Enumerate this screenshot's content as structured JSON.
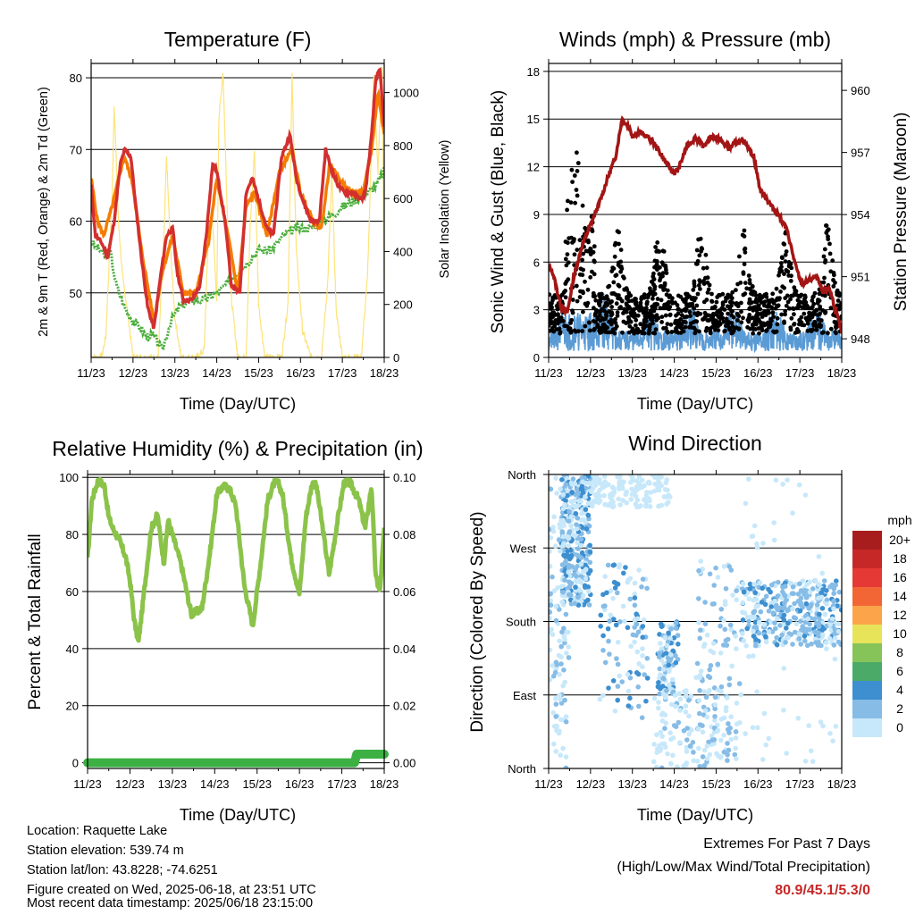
{
  "days": [
    "11/23",
    "12/23",
    "13/23",
    "14/23",
    "15/23",
    "16/23",
    "17/23",
    "18/23"
  ],
  "chart_data": [
    {
      "type": "line",
      "title": "Temperature (F)",
      "xlabel": "Time (Day/UTC)",
      "ylabel": "2m & 9m T (Red, Orange) & 2m Td (Green)",
      "y2label": "Solar Insolation (Yellow)",
      "ylim": [
        41,
        82
      ],
      "yticks": [
        50,
        60,
        70,
        80
      ],
      "y2lim": [
        0,
        1110
      ],
      "y2ticks": [
        0,
        200,
        400,
        600,
        800,
        1000
      ],
      "xlim": [
        0,
        7
      ],
      "series": [
        {
          "name": "2m T",
          "color": "#d32f2f",
          "axis": "left",
          "x": [
            0,
            0.1,
            0.25,
            0.4,
            0.55,
            0.7,
            0.8,
            0.95,
            1.05,
            1.2,
            1.35,
            1.5,
            1.65,
            1.8,
            1.95,
            2.05,
            2.2,
            2.4,
            2.6,
            2.75,
            2.9,
            3.0,
            3.2,
            3.35,
            3.55,
            3.7,
            3.85,
            4.0,
            4.2,
            4.35,
            4.55,
            4.75,
            4.9,
            5.05,
            5.25,
            5.45,
            5.6,
            5.75,
            5.9,
            6.05,
            6.25,
            6.45,
            6.55,
            6.7,
            6.8,
            6.9,
            7.0
          ],
          "y": [
            65,
            58,
            57,
            55,
            60,
            68,
            70,
            69,
            63,
            55,
            48,
            45,
            52,
            58,
            59,
            53,
            49,
            49,
            51,
            58,
            68,
            67,
            60,
            51,
            50,
            64,
            66,
            63,
            59,
            58,
            69,
            72,
            66,
            63,
            60,
            60,
            70,
            67,
            65,
            64,
            64,
            63,
            64,
            72,
            80,
            81,
            73
          ]
        },
        {
          "name": "9m T",
          "color": "#f57c00",
          "axis": "left",
          "x": [
            0,
            0.15,
            0.3,
            0.5,
            0.7,
            0.8,
            1.0,
            1.2,
            1.5,
            1.7,
            1.95,
            2.2,
            2.5,
            2.8,
            3.0,
            3.3,
            3.5,
            3.7,
            3.9,
            4.2,
            4.5,
            4.8,
            5.0,
            5.3,
            5.5,
            5.7,
            5.9,
            6.2,
            6.5,
            6.7,
            6.85,
            7.0
          ],
          "y": [
            66,
            60,
            58,
            62,
            67,
            69,
            65,
            56,
            46,
            53,
            58,
            50,
            50,
            57,
            66,
            57,
            50,
            62,
            64,
            58,
            67,
            70,
            64,
            60,
            59,
            68,
            66,
            64,
            64,
            70,
            78,
            72
          ]
        },
        {
          "name": "2m Td",
          "color": "#4caf3e",
          "axis": "left",
          "x": [
            0,
            0.2,
            0.35,
            0.45,
            0.6,
            0.8,
            1.0,
            1.2,
            1.3,
            1.5,
            1.7,
            1.9,
            2.1,
            2.4,
            2.7,
            3.0,
            3.2,
            3.5,
            3.7,
            4.0,
            4.3,
            4.6,
            4.9,
            5.2,
            5.5,
            5.8,
            6.0,
            6.3,
            6.6,
            6.8,
            7.0
          ],
          "y": [
            57,
            56,
            55,
            56,
            51,
            48,
            46,
            45,
            44,
            44,
            42,
            46,
            48,
            49,
            49,
            50,
            51,
            53,
            54,
            56,
            56,
            58,
            59,
            59,
            60,
            61,
            62,
            63,
            64,
            65,
            67
          ]
        },
        {
          "name": "Solar Insolation",
          "color": "#fde37a",
          "axis": "right",
          "x": [
            0,
            0.25,
            0.35,
            0.5,
            0.55,
            0.65,
            0.75,
            0.85,
            1.0,
            1.15,
            1.3,
            1.45,
            1.6,
            1.75,
            1.8,
            1.9,
            2.0,
            2.15,
            2.35,
            2.55,
            2.7,
            2.8,
            2.9,
            3.0,
            3.05,
            3.15,
            3.3,
            3.5,
            3.7,
            3.8,
            3.9,
            4.0,
            4.15,
            4.35,
            4.55,
            4.7,
            4.8,
            4.9,
            5.05,
            5.25,
            5.5,
            5.65,
            5.75,
            5.85,
            6.0,
            6.2,
            6.45,
            6.6,
            6.75,
            6.85,
            6.95,
            7.0
          ],
          "y": [
            0,
            0,
            80,
            600,
            960,
            520,
            300,
            200,
            0,
            0,
            0,
            0,
            0,
            500,
            760,
            400,
            150,
            0,
            0,
            0,
            30,
            470,
            520,
            200,
            900,
            1080,
            300,
            0,
            0,
            500,
            780,
            200,
            0,
            0,
            0,
            200,
            1060,
            400,
            100,
            0,
            0,
            280,
            700,
            180,
            0,
            0,
            0,
            300,
            1060,
            700,
            1100,
            200
          ]
        }
      ]
    },
    {
      "type": "scatter",
      "title": "Winds (mph) & Pressure (mb)",
      "xlabel": "Time (Day/UTC)",
      "ylabel": "Sonic Wind & Gust (Blue, Black)",
      "y2label": "Station Pressure (Maroon)",
      "ylim": [
        0,
        18.5
      ],
      "yticks": [
        0,
        3,
        6,
        9,
        12,
        15,
        18
      ],
      "y2lim": [
        947.1,
        961.3
      ],
      "y2ticks": [
        948,
        951,
        954,
        957,
        960
      ],
      "xlim": [
        0,
        7
      ],
      "pressure": {
        "name": "Station Pressure",
        "color": "#a31515",
        "x": [
          0,
          0.1,
          0.3,
          0.45,
          0.6,
          0.8,
          1.0,
          1.2,
          1.4,
          1.6,
          1.75,
          1.9,
          2.0,
          2.15,
          2.4,
          2.6,
          2.8,
          3.0,
          3.1,
          3.3,
          3.5,
          3.7,
          3.9,
          4.1,
          4.3,
          4.5,
          4.7,
          4.9,
          5.05,
          5.2,
          5.35,
          5.5,
          5.7,
          5.9,
          6.05,
          6.2,
          6.4,
          6.55,
          6.7,
          6.85,
          7.0
        ],
        "y": [
          951.5,
          951.2,
          949.5,
          949.3,
          951,
          952.5,
          953.5,
          954.5,
          955.7,
          956.8,
          958.6,
          958.3,
          957.8,
          958,
          957.7,
          957.2,
          956.5,
          956,
          956.2,
          957.3,
          957.7,
          957.3,
          957.8,
          957.6,
          957.2,
          957.5,
          957.5,
          956.8,
          955.2,
          954.8,
          954.3,
          954,
          953.2,
          951.5,
          950.6,
          950.8,
          951,
          950.2,
          950.5,
          949.4,
          948.3
        ]
      },
      "gust_color": "#000000",
      "wind_color": "#5b9bd5"
    },
    {
      "type": "line",
      "title": "Relative Humidity (%) & Precipitation (in)",
      "xlabel": "Time (Day/UTC)",
      "ylabel": "Percent & Total Rainfall",
      "ylim": [
        -2,
        101
      ],
      "yticks": [
        0,
        20,
        40,
        60,
        80,
        100
      ],
      "y2lim": [
        -0.002,
        0.101
      ],
      "y2ticks": [
        "0.00",
        "0.02",
        "0.04",
        "0.06",
        "0.08",
        "0.10"
      ],
      "xlim": [
        0,
        7
      ],
      "series": [
        {
          "name": "Relative Humidity",
          "color": "#8bc34a",
          "axis": "left",
          "x": [
            0,
            0.1,
            0.25,
            0.4,
            0.5,
            0.6,
            0.75,
            0.9,
            1.0,
            1.1,
            1.2,
            1.35,
            1.5,
            1.65,
            1.8,
            1.9,
            2.0,
            2.2,
            2.45,
            2.7,
            2.9,
            3.05,
            3.2,
            3.35,
            3.5,
            3.7,
            3.9,
            4.1,
            4.25,
            4.4,
            4.5,
            4.6,
            4.8,
            5.0,
            5.15,
            5.3,
            5.4,
            5.55,
            5.7,
            5.9,
            6.05,
            6.2,
            6.4,
            6.55,
            6.7,
            6.8,
            6.9,
            7.0
          ],
          "y": [
            71,
            92,
            99,
            97,
            86,
            82,
            78,
            72,
            64,
            50,
            42,
            62,
            82,
            87,
            70,
            85,
            80,
            70,
            52,
            54,
            75,
            94,
            97,
            96,
            90,
            62,
            48,
            72,
            92,
            98,
            98,
            94,
            72,
            59,
            86,
            98,
            97,
            82,
            66,
            85,
            98,
            98,
            92,
            82,
            97,
            65,
            60,
            82
          ]
        },
        {
          "name": "Total Precipitation",
          "color": "#3cb043",
          "axis": "right",
          "x": [
            0,
            6.3,
            6.35,
            7.0
          ],
          "y": [
            0.0,
            0.0,
            0.003,
            0.003
          ]
        }
      ]
    },
    {
      "type": "scatter",
      "title": "Wind Direction",
      "xlabel": "Time (Day/UTC)",
      "ylabel": "Direction (Colored By Speed)",
      "ylim": [
        0,
        360
      ],
      "yticks": [
        {
          "value": 0,
          "label": "North"
        },
        {
          "value": 90,
          "label": "East"
        },
        {
          "value": 180,
          "label": "South"
        },
        {
          "value": 270,
          "label": "West"
        },
        {
          "value": 360,
          "label": "North"
        }
      ],
      "xlim": [
        0,
        7
      ],
      "colorbar": {
        "unit": "mph",
        "labels": [
          "20+",
          "18",
          "16",
          "14",
          "12",
          "10",
          "8",
          "6",
          "4",
          "2",
          "0"
        ],
        "colors": [
          "#a71d1d",
          "#c62828",
          "#e53935",
          "#f26535",
          "#fca44a",
          "#e7e45a",
          "#86c45a",
          "#4caa68",
          "#3d8fd0",
          "#86bce6",
          "#c7e8fa"
        ]
      }
    }
  ],
  "info": {
    "location": "Location: Raquette Lake",
    "elevation": "Station elevation: 539.74 m",
    "latlon": "Station lat/lon: 43.8228; -74.6251",
    "created": "Figure created on Wed, 2025-06-18, at 23:51 UTC",
    "recent": "Most recent data timestamp: 2025/06/18 23:15:00"
  },
  "extremes": {
    "heading": "Extremes For Past 7 Days",
    "subheading": "(High/Low/Max Wind/Total Precipitation)",
    "values": "80.9/45.1/5.3/0"
  }
}
